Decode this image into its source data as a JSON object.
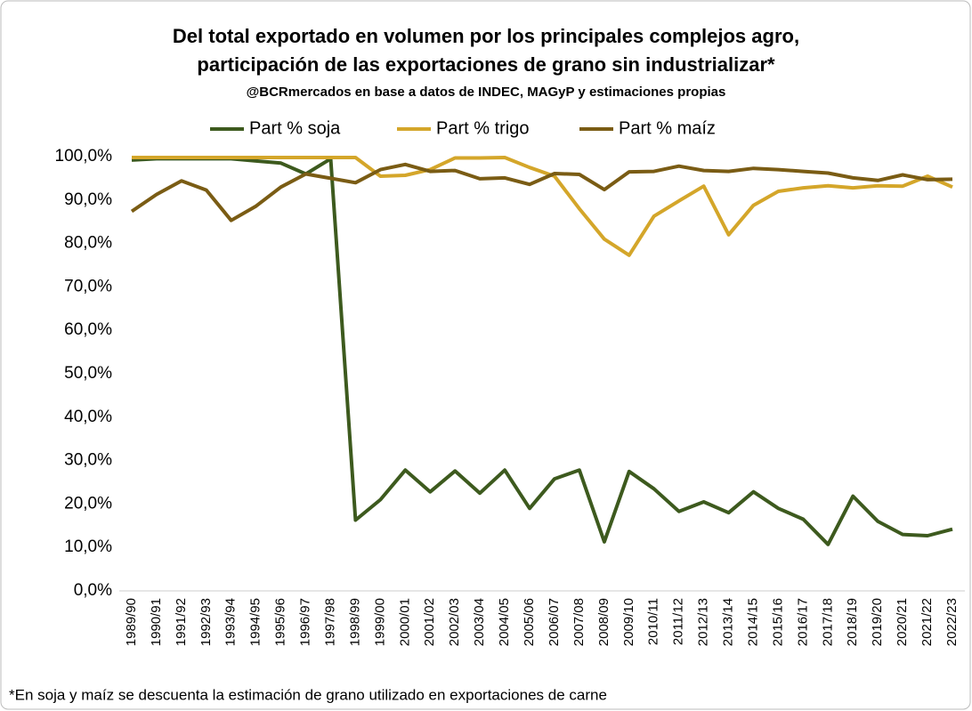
{
  "chart_data": {
    "type": "line",
    "title": "Del total exportado en volumen por los principales complejos agro,",
    "title_line2": "participación de las exportaciones de grano sin industrializar*",
    "subtitle": "@BCRmercados en base a datos de INDEC, MAGyP y estimaciones propias",
    "footnote": "*En soja y maíz se descuenta la estimación de grano utilizado en exportaciones de carne",
    "categories": [
      "1989/90",
      "1990/91",
      "1991/92",
      "1992/93",
      "1993/94",
      "1994/95",
      "1995/96",
      "1996/97",
      "1997/98",
      "1998/99",
      "1999/00",
      "2000/01",
      "2001/02",
      "2002/03",
      "2003/04",
      "2004/05",
      "2005/06",
      "2006/07",
      "2007/08",
      "2008/09",
      "2009/10",
      "2010/11",
      "2011/12",
      "2012/13",
      "2013/14",
      "2014/15",
      "2015/16",
      "2016/17",
      "2017/18",
      "2018/19",
      "2019/20",
      "2020/21",
      "2021/22",
      "2022/23"
    ],
    "series": [
      {
        "name": "Part % soja",
        "color": "#3d5a1e",
        "values": [
          99.2,
          99.5,
          99.5,
          99.5,
          99.5,
          99,
          98.5,
          96,
          99.5,
          16.3,
          21,
          27.8,
          22.8,
          27.6,
          22.5,
          27.8,
          19,
          25.8,
          27.8,
          11.3,
          27.5,
          23.5,
          18.3,
          20.5,
          18,
          22.8,
          19,
          16.5,
          10.7,
          21.8,
          16,
          13,
          12.7,
          14.2
        ]
      },
      {
        "name": "Part % trigo",
        "color": "#d4a62a",
        "values": [
          99.8,
          99.8,
          99.8,
          99.8,
          99.8,
          99.8,
          99.8,
          99.8,
          99.8,
          99.8,
          95.5,
          95.7,
          97,
          99.7,
          99.7,
          99.8,
          97.5,
          95.5,
          88,
          81,
          77.3,
          86.3,
          89.8,
          93.2,
          82,
          88.8,
          92,
          92.8,
          93.3,
          92.8,
          93.3,
          93.2,
          95.5,
          93
        ]
      },
      {
        "name": "Part % maíz",
        "color": "#7a5c14",
        "values": [
          87.4,
          91.3,
          94.4,
          92.3,
          85.3,
          88.6,
          93,
          96,
          95,
          94,
          97,
          98.2,
          96.6,
          96.8,
          94.9,
          95.1,
          93.6,
          96.1,
          95.9,
          92.4,
          96.5,
          96.6,
          97.8,
          96.8,
          96.6,
          97.3,
          97,
          96.6,
          96.2,
          95.1,
          94.5,
          95.8,
          94.7,
          94.8
        ]
      }
    ],
    "ylim": [
      0,
      100
    ],
    "yticks": [
      {
        "value": 0,
        "label": "0,0%"
      },
      {
        "value": 10,
        "label": "10,0%"
      },
      {
        "value": 20,
        "label": "20,0%"
      },
      {
        "value": 30,
        "label": "30,0%"
      },
      {
        "value": 40,
        "label": "40,0%"
      },
      {
        "value": 50,
        "label": "50,0%"
      },
      {
        "value": 60,
        "label": "60,0%"
      },
      {
        "value": 70,
        "label": "70,0%"
      },
      {
        "value": 80,
        "label": "80,0%"
      },
      {
        "value": 90,
        "label": "90,0%"
      },
      {
        "value": 100,
        "label": "100,0%"
      }
    ],
    "grid": false,
    "legend": "top"
  }
}
